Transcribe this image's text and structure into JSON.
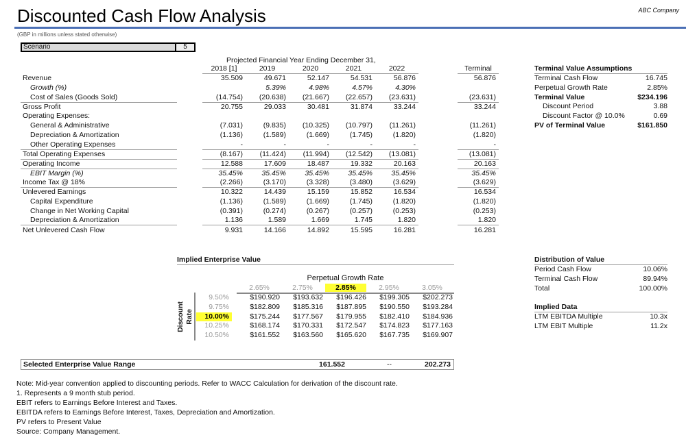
{
  "header": {
    "title": "Discounted Cash Flow Analysis",
    "company": "ABC Company",
    "units": "(GBP in millions unless stated otherwise)",
    "scenario_label": "Scenario",
    "scenario_value": "5"
  },
  "projection": {
    "heading": "Projected Financial Year Ending December 31,",
    "years": [
      "2018 [1]",
      "2019",
      "2020",
      "2021",
      "2022"
    ],
    "terminal_label": "Terminal",
    "rows": [
      {
        "label": "Revenue",
        "values": [
          "35.509",
          "49.671",
          "52.147",
          "54.531",
          "56.876"
        ],
        "terminal": "56.876"
      },
      {
        "label": "Growth (%)",
        "values": [
          "",
          "5.39%",
          "4.98%",
          "4.57%",
          "4.30%"
        ],
        "terminal": "",
        "indent": true,
        "italic": true
      },
      {
        "label": "Cost of Sales (Goods Sold)",
        "values": [
          "(14.754)",
          "(20.638)",
          "(21.667)",
          "(22.657)",
          "(23.631)"
        ],
        "terminal": "(23.631)",
        "indent": true,
        "line": true
      },
      {
        "label": "Gross Profit",
        "values": [
          "20.755",
          "29.033",
          "30.481",
          "31.874",
          "33.244"
        ],
        "terminal": "33.244"
      },
      {
        "label": "Operating Expenses:",
        "values": [
          "",
          "",
          "",
          "",
          ""
        ],
        "terminal": ""
      },
      {
        "label": "General & Administrative",
        "values": [
          "(7.031)",
          "(9.835)",
          "(10.325)",
          "(10.797)",
          "(11.261)"
        ],
        "terminal": "(11.261)",
        "indent": true
      },
      {
        "label": "Depreciation & Amortization",
        "values": [
          "(1.136)",
          "(1.589)",
          "(1.669)",
          "(1.745)",
          "(1.820)"
        ],
        "terminal": "(1.820)",
        "indent": true
      },
      {
        "label": "Other Operating Expenses",
        "values": [
          "-",
          "-",
          "-",
          "-",
          "-"
        ],
        "terminal": "-",
        "indent": true,
        "line": true
      },
      {
        "label": "Total Operating Expenses",
        "values": [
          "(8.167)",
          "(11.424)",
          "(11.994)",
          "(12.542)",
          "(13.081)"
        ],
        "terminal": "(13.081)",
        "line": true
      },
      {
        "label": "Operating Income",
        "values": [
          "12.588",
          "17.609",
          "18.487",
          "19.332",
          "20.163"
        ],
        "terminal": "20.163",
        "line": true
      },
      {
        "label": "EBIT Margin (%)",
        "values": [
          "35.45%",
          "35.45%",
          "35.45%",
          "35.45%",
          "35.45%"
        ],
        "terminal": "35.45%",
        "indent": true,
        "italic": true
      },
      {
        "label": "Income Tax @ 18%",
        "values": [
          "(2.266)",
          "(3.170)",
          "(3.328)",
          "(3.480)",
          "(3.629)"
        ],
        "terminal": "(3.629)",
        "line": true
      },
      {
        "label": "Unlevered Earnings",
        "values": [
          "10.322",
          "14.439",
          "15.159",
          "15.852",
          "16.534"
        ],
        "terminal": "16.534"
      },
      {
        "label": "Capital Expenditure",
        "values": [
          "(1.136)",
          "(1.589)",
          "(1.669)",
          "(1.745)",
          "(1.820)"
        ],
        "terminal": "(1.820)",
        "indent": true
      },
      {
        "label": "Change in Net Working Capital",
        "values": [
          "(0.391)",
          "(0.274)",
          "(0.267)",
          "(0.257)",
          "(0.253)"
        ],
        "terminal": "(0.253)",
        "indent": true
      },
      {
        "label": "Depreciation & Amortization",
        "values": [
          "1.136",
          "1.589",
          "1.669",
          "1.745",
          "1.820"
        ],
        "terminal": "1.820",
        "indent": true,
        "line": true
      },
      {
        "label": "Net Unlevered Cash Flow",
        "values": [
          "9.931",
          "14.166",
          "14.892",
          "15.595",
          "16.281"
        ],
        "terminal": "16.281"
      }
    ]
  },
  "terminal_assumptions": {
    "title": "Terminal Value Assumptions",
    "rows": [
      {
        "label": "Terminal Cash Flow",
        "value": "16.745"
      },
      {
        "label": "Perpetual Growth Rate",
        "value": "2.85%"
      },
      {
        "label": "Terminal Value",
        "value": "$234.196",
        "bold": true
      },
      {
        "label": "Discount Period",
        "value": "3.88",
        "indent": true
      },
      {
        "label": "Discount Factor @ 10.0%",
        "value": "0.69",
        "indent": true
      },
      {
        "label": "PV of Terminal Value",
        "value": "$161.850",
        "bold": true
      }
    ]
  },
  "distribution": {
    "title": "Distribution of Value",
    "rows": [
      {
        "label": "Period Cash Flow",
        "value": "10.06%"
      },
      {
        "label": "Terminal Cash Flow",
        "value": "89.94%"
      },
      {
        "label": "Total",
        "value": "100.00%"
      }
    ]
  },
  "implied": {
    "title": "Implied Data",
    "rows": [
      {
        "label": "LTM EBITDA Multiple",
        "value": "10.3x"
      },
      {
        "label": "LTM EBIT Multiple",
        "value": "11.2x"
      }
    ]
  },
  "sensitivity": {
    "title": "Implied Enterprise Value",
    "col_title": "Perpetual Growth Rate",
    "row_title_1": "Discount",
    "row_title_2": "Rate",
    "growth_rates": [
      "2.65%",
      "2.75%",
      "2.85%",
      "2.95%",
      "3.05%"
    ],
    "selected_growth_index": 2,
    "discount_rates": [
      "9.50%",
      "9.75%",
      "10.00%",
      "10.25%",
      "10.50%"
    ],
    "selected_discount_index": 2,
    "values": [
      [
        "$190.920",
        "$193.632",
        "$196.426",
        "$199.305",
        "$202.273"
      ],
      [
        "$182.809",
        "$185.316",
        "$187.895",
        "$190.550",
        "$193.284"
      ],
      [
        "$175.244",
        "$177.567",
        "$179.955",
        "$182.410",
        "$184.936"
      ],
      [
        "$168.174",
        "$170.331",
        "$172.547",
        "$174.823",
        "$177.163"
      ],
      [
        "$161.552",
        "$163.560",
        "$165.620",
        "$167.735",
        "$169.907"
      ]
    ]
  },
  "selected_range": {
    "label": "Selected Enterprise Value Range",
    "low": "161.552",
    "sep": "--",
    "high": "202.273"
  },
  "notes": [
    "Note: Mid-year convention applied to discounting periods. Refer to WACC Calculation for derivation of the discount rate.",
    "1. Represents a 9 month stub period.",
    "EBIT refers to Earnings Before Interest and Taxes.",
    "EBITDA refers to Earnings Before Interest, Taxes, Depreciation and Amortization.",
    "PV refers to Present Value",
    "Source: Company Management."
  ]
}
